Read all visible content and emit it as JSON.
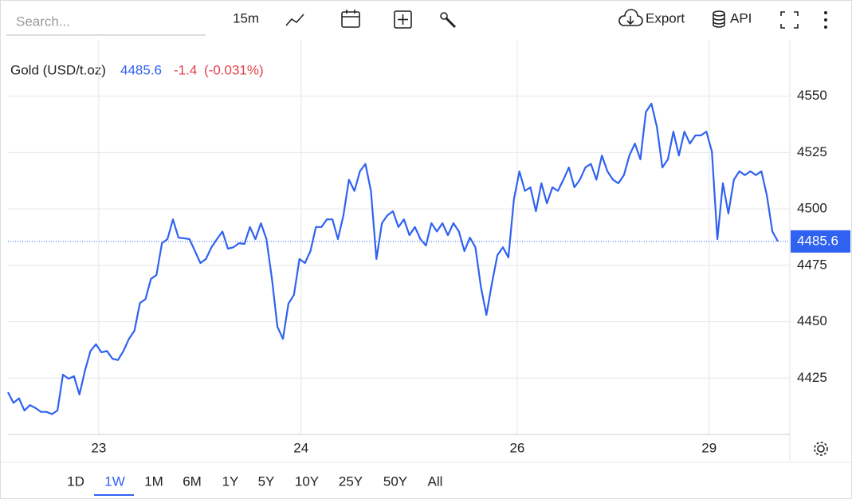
{
  "toolbar": {
    "search_placeholder": "Search...",
    "interval": "15m",
    "export": "Export",
    "api": "API"
  },
  "ranges": {
    "items": [
      "1D",
      "1W",
      "1M",
      "6M",
      "1Y",
      "5Y",
      "10Y",
      "25Y",
      "50Y",
      "All"
    ],
    "selected": "1W"
  },
  "chart_data": {
    "type": "line",
    "title": "Gold (USD/t.oz)",
    "last_price": 4485.6,
    "change": "-1.4",
    "change_pct": "(-0.031%)",
    "ylim": [
      4400,
      4575
    ],
    "yticks": [
      4425,
      4450,
      4475,
      4500,
      4525,
      4550
    ],
    "xlim": [
      0,
      140
    ],
    "xticks": [
      {
        "value": 16.5,
        "label": "23"
      },
      {
        "value": 53.3,
        "label": "24"
      },
      {
        "value": 92.6,
        "label": "26"
      },
      {
        "value": 127.5,
        "label": "29"
      }
    ],
    "grid": true,
    "color": "#2f62f0",
    "up_color": "#2f62f0",
    "down_color": "#e0404a",
    "series": [
      {
        "name": "Gold",
        "color": "#2f62f0",
        "values": [
          4418.7,
          4414,
          4416,
          4410.6,
          4413,
          4411.7,
          4410,
          4410,
          4409,
          4410.6,
          4426.5,
          4424.7,
          4425.8,
          4417.7,
          4428.3,
          4437,
          4440,
          4436.4,
          4437,
          4433.6,
          4433,
          4437,
          4442.4,
          4446,
          4458.3,
          4460,
          4469,
          4470.7,
          4484.8,
          4486.6,
          4495.4,
          4487.3,
          4487,
          4486.6,
          4481.3,
          4476,
          4477.8,
          4483,
          4486.6,
          4490,
          4482.4,
          4483,
          4484.8,
          4484.5,
          4492,
          4486.6,
          4493.7,
          4486.6,
          4469,
          4447.7,
          4442.4,
          4458,
          4461.9,
          4477.8,
          4476,
          4481.3,
          4492,
          4492,
          4495.4,
          4495.4,
          4486.6,
          4497.2,
          4513,
          4508,
          4516.7,
          4520,
          4508,
          4477.8,
          4493.7,
          4497.2,
          4499,
          4492,
          4495.4,
          4488.4,
          4492,
          4486.6,
          4483.8,
          4493.7,
          4490,
          4493.7,
          4488.4,
          4493.7,
          4490,
          4481.3,
          4487.3,
          4483,
          4465.4,
          4453,
          4467,
          4479.5,
          4483,
          4478.5,
          4504.3,
          4516.7,
          4508,
          4509.6,
          4499,
          4511.4,
          4502.5,
          4509.6,
          4508,
          4513,
          4518.4,
          4509.6,
          4513,
          4518.4,
          4520,
          4513,
          4523.7,
          4516.7,
          4513,
          4511.4,
          4515,
          4523.7,
          4529,
          4522,
          4543,
          4546.7,
          4536.4,
          4518.4,
          4522,
          4534.3,
          4523.7,
          4534.3,
          4529,
          4532.6,
          4532.6,
          4534.3,
          4525.5,
          4486.6,
          4511.4,
          4498,
          4513,
          4516.7,
          4515,
          4516.7,
          4515,
          4516.7,
          4506,
          4490,
          4485.6
        ]
      }
    ]
  }
}
